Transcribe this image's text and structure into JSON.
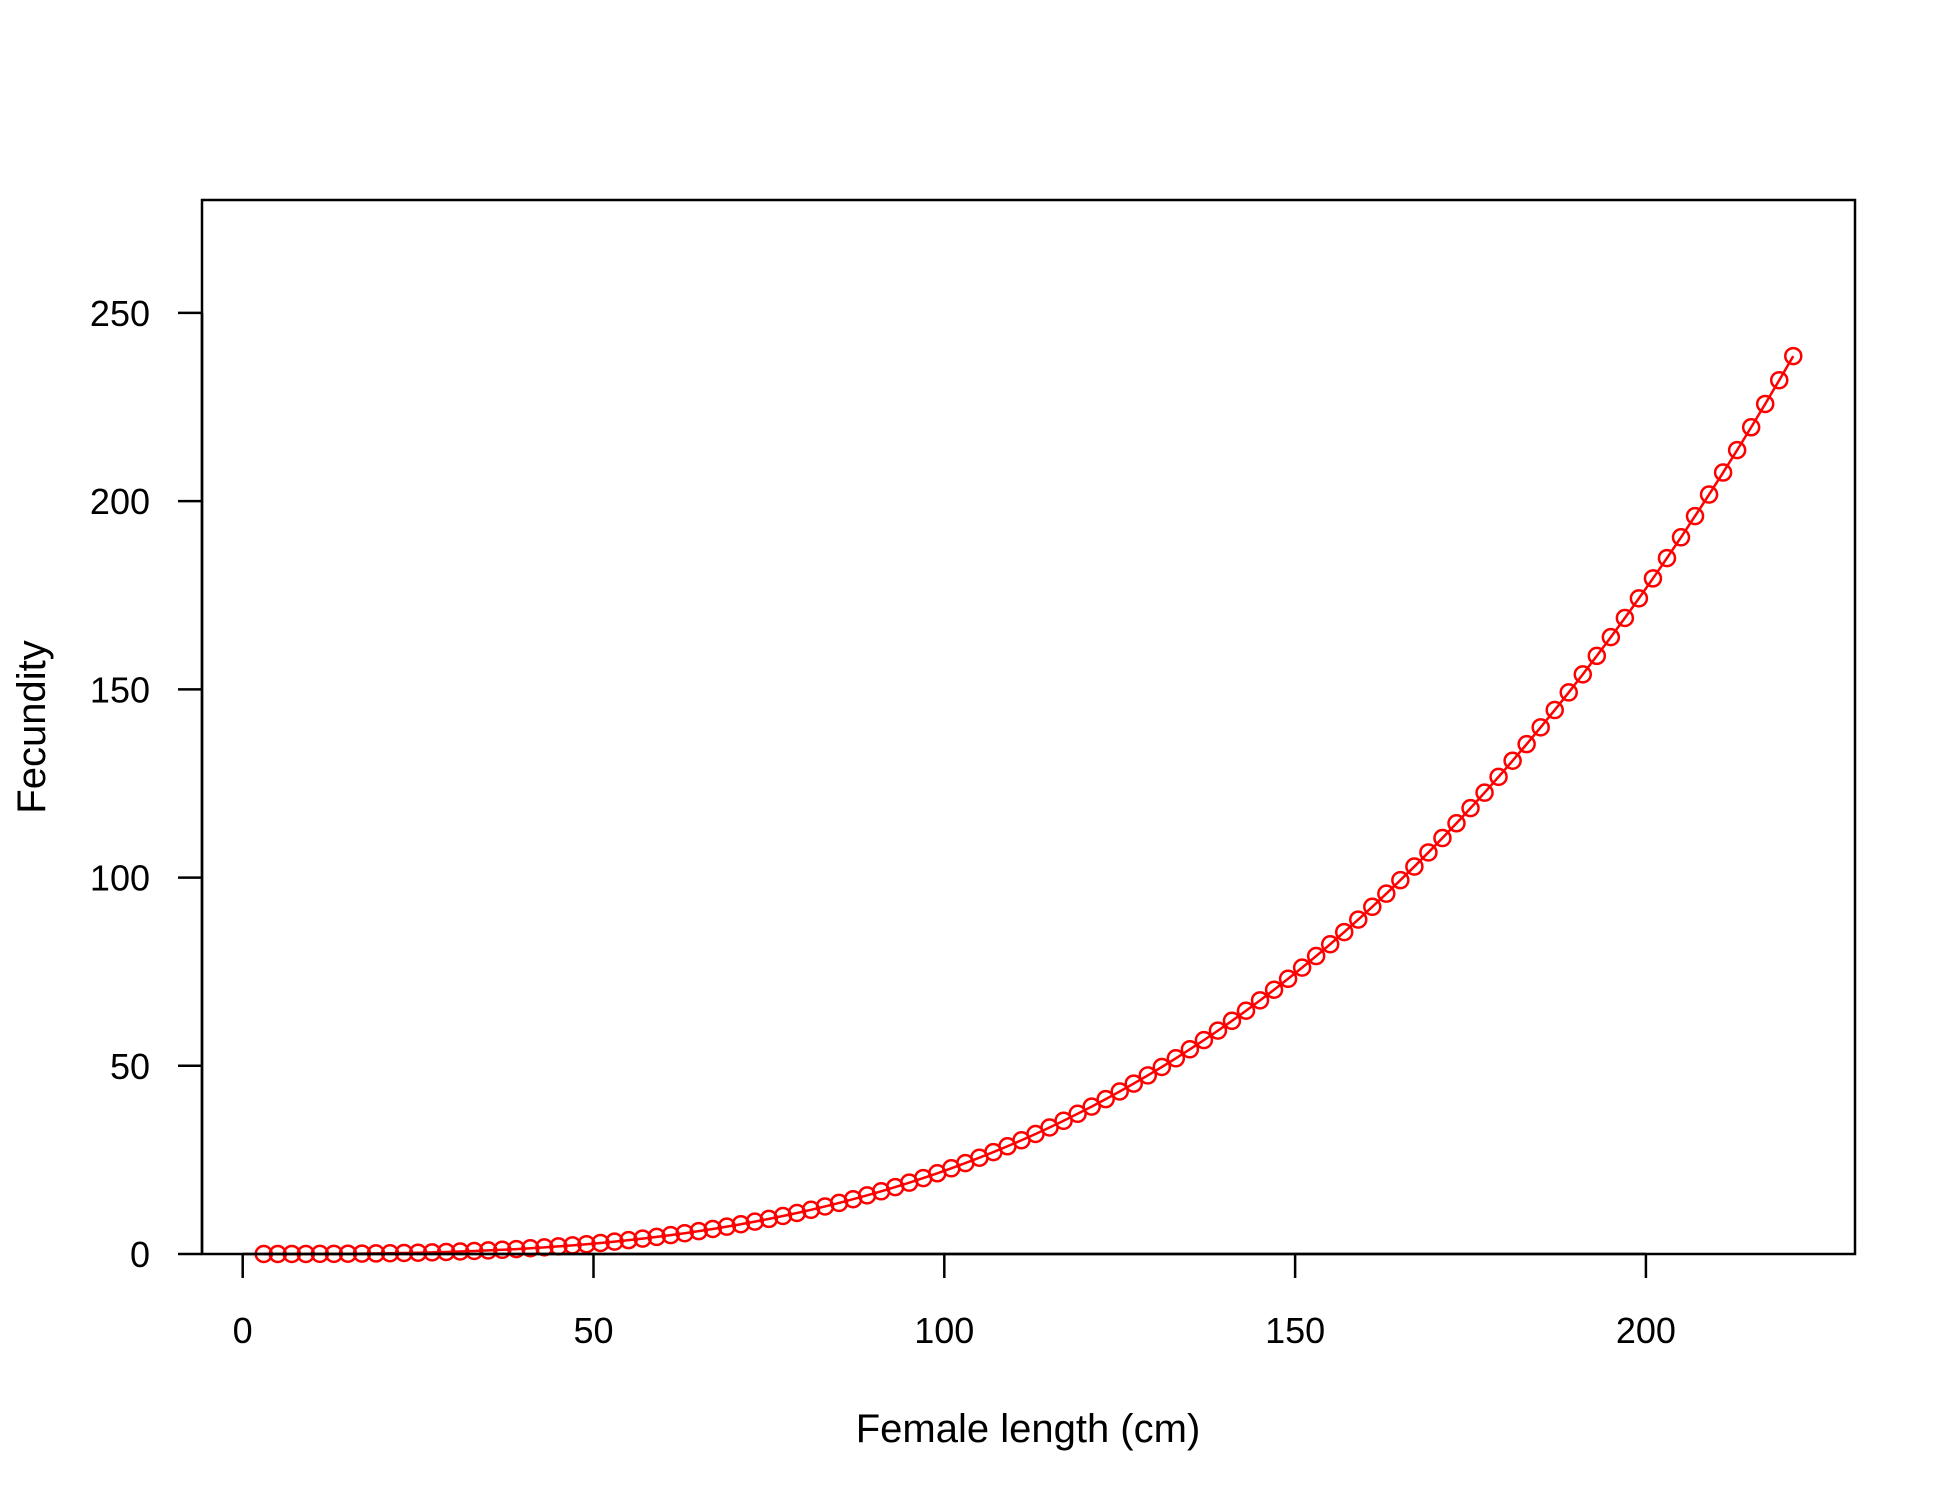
{
  "chart_data": {
    "type": "line",
    "title": "",
    "xlabel": "Female length (cm)",
    "ylabel": "Fecundity",
    "xlim": [
      -5.8,
      229.8
    ],
    "ylim": [
      0,
      280
    ],
    "x_ticks": [
      0,
      50,
      100,
      150,
      200
    ],
    "y_ticks": [
      0,
      50,
      100,
      150,
      200,
      250
    ],
    "x_tick_labels": [
      "0",
      "50",
      "100",
      "150",
      "200"
    ],
    "y_tick_labels": [
      "0",
      "50",
      "100",
      "150",
      "200",
      "250"
    ],
    "grid": false,
    "series": [
      {
        "color": "#ff0000",
        "marker": "open-circle",
        "x_start": 3,
        "x_step": 2,
        "x_end": 221,
        "model": "power",
        "coef": 2.21e-05,
        "exponent": 3.0,
        "note": "y = coef * x^exponent evaluated at each x",
        "x": [
          3,
          5,
          7,
          9,
          11,
          13,
          15,
          17,
          19,
          21,
          23,
          25,
          27,
          29,
          31,
          33,
          35,
          37,
          39,
          41,
          43,
          45,
          47,
          49,
          51,
          53,
          55,
          57,
          59,
          61,
          63,
          65,
          67,
          69,
          71,
          73,
          75,
          77,
          79,
          81,
          83,
          85,
          87,
          89,
          91,
          93,
          95,
          97,
          99,
          101,
          103,
          105,
          107,
          109,
          111,
          113,
          115,
          117,
          119,
          121,
          123,
          125,
          127,
          129,
          131,
          133,
          135,
          137,
          139,
          141,
          143,
          145,
          147,
          149,
          151,
          153,
          155,
          157,
          159,
          161,
          163,
          165,
          167,
          169,
          171,
          173,
          175,
          177,
          179,
          181,
          183,
          185,
          187,
          189,
          191,
          193,
          195,
          197,
          199,
          201,
          203,
          205,
          207,
          209,
          211,
          213,
          215,
          217,
          219,
          221
        ],
        "y": [
          0.0006,
          0.0028,
          0.0076,
          0.0161,
          0.0294,
          0.0486,
          0.0746,
          0.1086,
          0.1516,
          0.2047,
          0.2689,
          0.3453,
          0.435,
          0.539,
          0.6584,
          0.7942,
          0.9475,
          1.1194,
          1.3109,
          1.523,
          1.7571,
          2.0138,
          2.2946,
          2.6004,
          2.9319,
          3.2905,
          3.677,
          4.0926,
          4.5381,
          5.0165,
          5.5263,
          6.0692,
          6.6481,
          7.2613,
          7.9101,
          8.5972,
          9.3234,
          10.0897,
          10.8965,
          11.7446,
          12.6352,
          13.5698,
          14.5537,
          15.5808,
          16.6527,
          17.7724,
          18.9466,
          20.1689,
          21.4442,
          22.7696,
          24.1465,
          25.5806,
          27.0724,
          28.6167,
          30.2202,
          31.8828,
          33.6064,
          35.3869,
          37.2437,
          39.1551,
          41.1342,
          43.1641,
          45.2711,
          47.4403,
          49.6763,
          51.9897,
          54.3778,
          56.8209,
          59.3472,
          61.9493,
          64.6249,
          67.3894,
          70.1994,
          73.1103,
          76.0805,
          79.1514,
          82.2889,
          85.5228,
          88.8386,
          92.2342,
          95.7208,
          99.3103,
          102.9246,
          106.6774,
          110.4985,
          114.4225,
          118.4482,
          122.5515,
          126.7556,
          131.0428,
          135.4434,
          139.9136,
          144.4989,
          149.1848,
          153.9837,
          158.8843,
          163.8761,
          168.9577,
          174.1647,
          179.4747,
          184.8773,
          190.3935,
          196.0201,
          201.7483,
          207.6003,
          213.5536,
          219.6225,
          225.8182,
          232.1261,
          238.5354
        ]
      }
    ]
  }
}
